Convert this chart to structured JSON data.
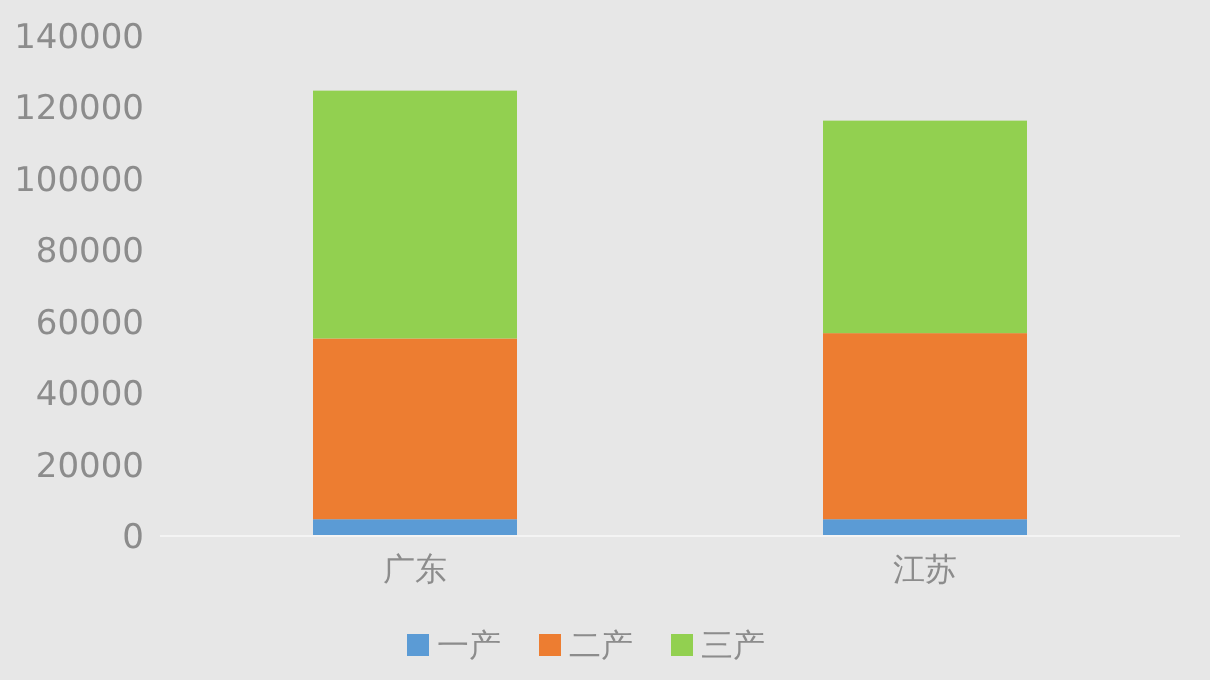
{
  "chart_data": {
    "type": "bar",
    "stacked": true,
    "categories": [
      "广东",
      "江苏"
    ],
    "series": [
      {
        "name": "一产",
        "color": "#5b9bd5",
        "values": [
          4700,
          4700
        ]
      },
      {
        "name": "二产",
        "color": "#ed7d31",
        "values": [
          50600,
          52100
        ]
      },
      {
        "name": "三产",
        "color": "#92d050",
        "values": [
          69400,
          59500
        ]
      }
    ],
    "ylim": [
      0,
      140000
    ],
    "yticks": [
      0,
      20000,
      40000,
      60000,
      80000,
      100000,
      120000,
      140000
    ],
    "grid": false,
    "legend": "bottom"
  }
}
